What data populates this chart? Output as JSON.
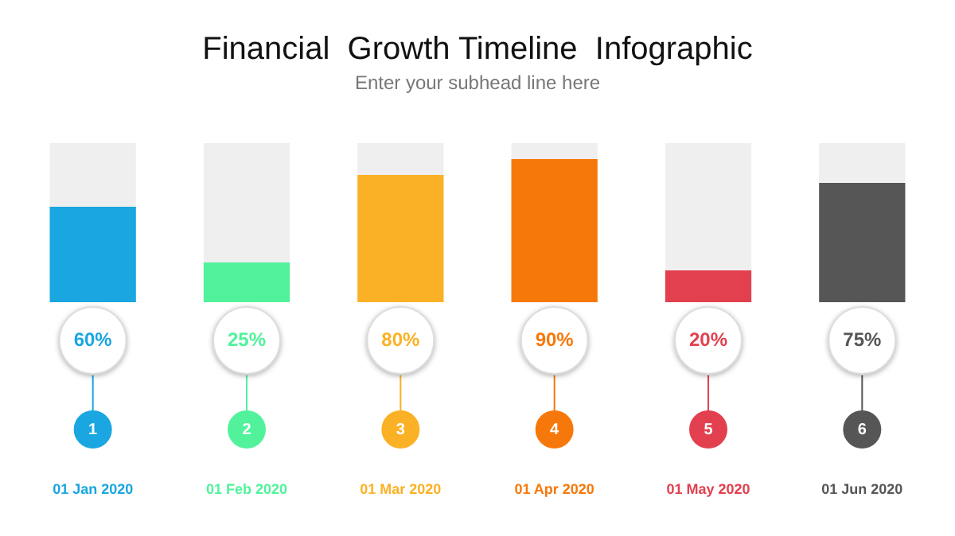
{
  "chart_data": {
    "type": "bar",
    "title": "Financial  Growth Timeline  Infographic",
    "subtitle": "Enter your subhead line here",
    "categories": [
      "01 Jan 2020",
      "01 Feb 2020",
      "01 Mar 2020",
      "01 Apr 2020",
      "01 May 2020",
      "01 Jun 2020"
    ],
    "values": [
      60,
      25,
      80,
      90,
      20,
      75
    ],
    "value_labels": [
      "60%",
      "25%",
      "80%",
      "90%",
      "20%",
      "75%"
    ],
    "colors": [
      "#1aa6e0",
      "#52f29c",
      "#fbb125",
      "#f7780a",
      "#e3404f",
      "#565656"
    ],
    "ylim": [
      0,
      100
    ],
    "tick_labels": "x",
    "grid": false,
    "legend": false,
    "annotations": [
      {
        "text": "1",
        "x": "01 Jan 2020"
      },
      {
        "text": "2",
        "x": "01 Feb 2020"
      },
      {
        "text": "3",
        "x": "01 Mar 2020"
      },
      {
        "text": "4",
        "x": "01 Apr 2020"
      },
      {
        "text": "5",
        "x": "01 May 2020"
      },
      {
        "text": "6",
        "x": "01 Jun 2020"
      }
    ]
  }
}
